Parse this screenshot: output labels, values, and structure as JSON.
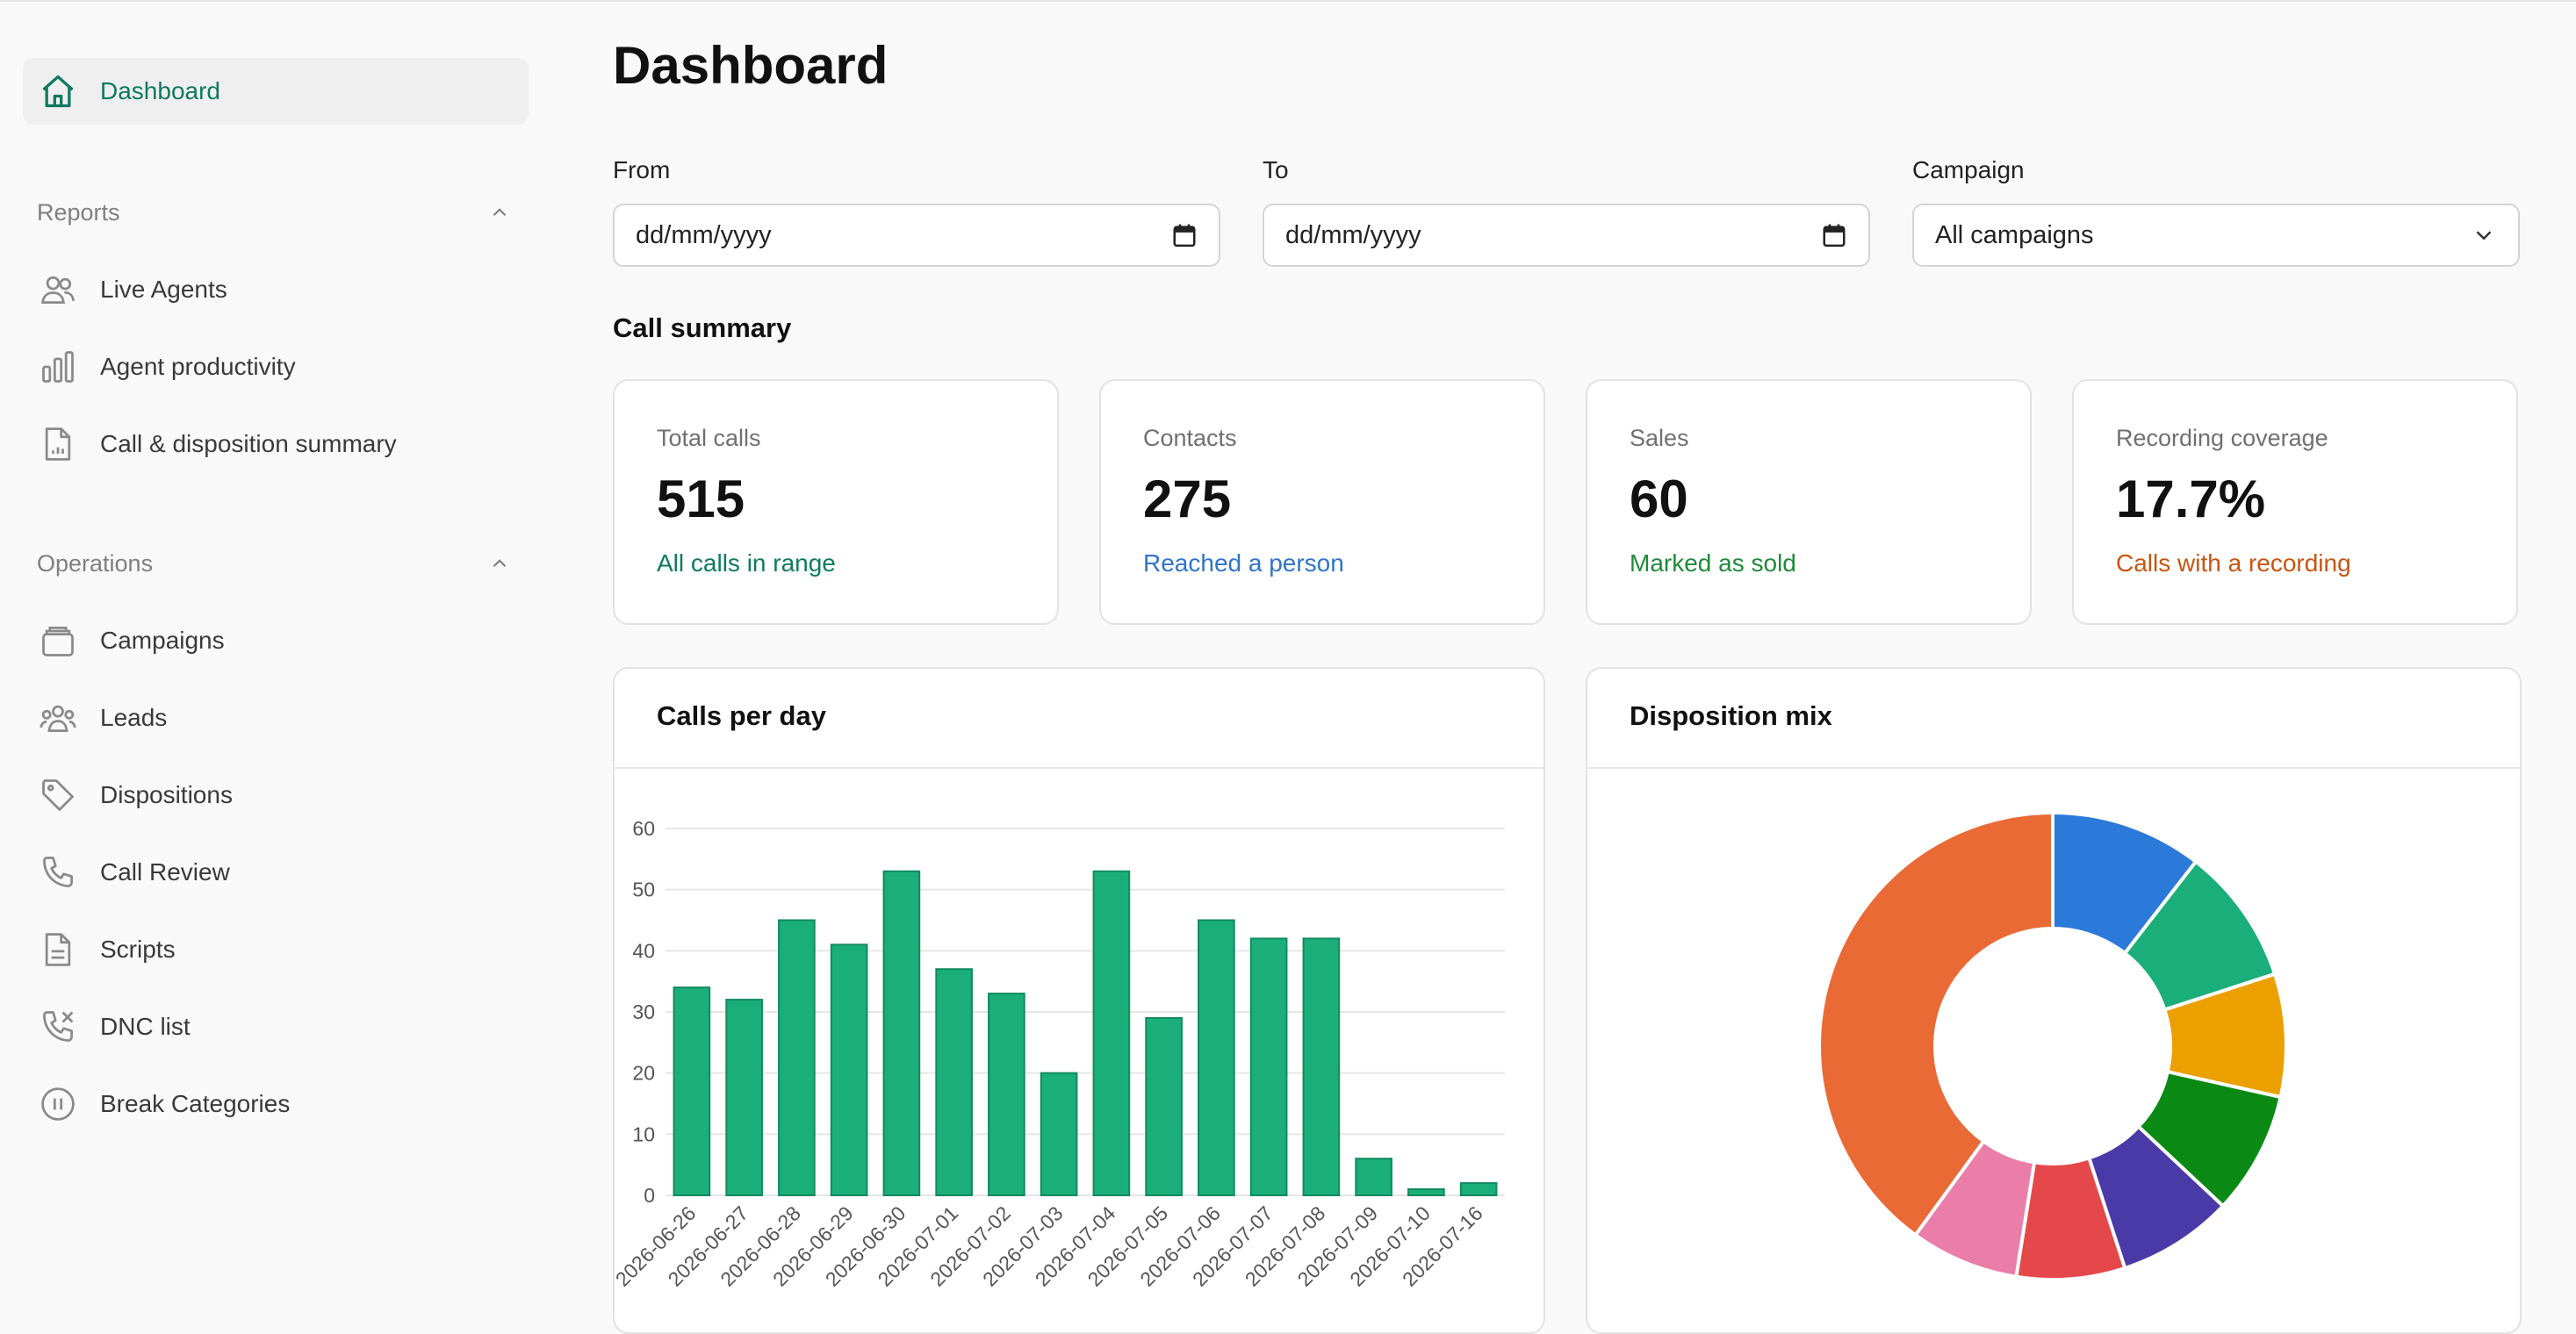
{
  "sidebar": {
    "dashboard": "Dashboard",
    "reports_title": "Reports",
    "reports": [
      "Live Agents",
      "Agent productivity",
      "Call & disposition summary"
    ],
    "operations_title": "Operations",
    "operations": [
      "Campaigns",
      "Leads",
      "Dispositions",
      "Call Review",
      "Scripts",
      "DNC list",
      "Break Categories"
    ]
  },
  "page": {
    "title": "Dashboard"
  },
  "filters": {
    "from_label": "From",
    "from_value": "dd/mm/yyyy",
    "to_label": "To",
    "to_value": "dd/mm/yyyy",
    "campaign_label": "Campaign",
    "campaign_value": "All campaigns"
  },
  "summary": {
    "title": "Call summary",
    "cards": [
      {
        "label": "Total calls",
        "value": "515",
        "sub": "All calls in range",
        "color": "#0e7a5f"
      },
      {
        "label": "Contacts",
        "value": "275",
        "sub": "Reached a person",
        "color": "#2f74c9"
      },
      {
        "label": "Sales",
        "value": "60",
        "sub": "Marked as sold",
        "color": "#1f8a3a"
      },
      {
        "label": "Recording coverage",
        "value": "17.7%",
        "sub": "Calls with a recording",
        "color": "#c9540f"
      }
    ]
  },
  "panels": {
    "calls_title": "Calls per day",
    "mix_title": "Disposition mix"
  },
  "chart_data": [
    {
      "type": "bar",
      "title": "Calls per day",
      "categories": [
        "2026-06-26",
        "2026-06-27",
        "2026-06-28",
        "2026-06-29",
        "2026-06-30",
        "2026-07-01",
        "2026-07-02",
        "2026-07-03",
        "2026-07-04",
        "2026-07-05",
        "2026-07-06",
        "2026-07-07",
        "2026-07-08",
        "2026-07-09",
        "2026-07-10",
        "2026-07-16"
      ],
      "values": [
        34,
        32,
        45,
        41,
        53,
        37,
        33,
        20,
        53,
        29,
        45,
        42,
        42,
        6,
        1,
        2
      ],
      "yticks": [
        0,
        10,
        20,
        30,
        40,
        50,
        60
      ],
      "ylim": [
        0,
        60
      ],
      "grid": true,
      "color": "#1aaf7a"
    },
    {
      "type": "pie",
      "title": "Disposition mix",
      "donut": true,
      "slices": [
        {
          "value": 10.5,
          "color": "#2b79d9"
        },
        {
          "value": 9.5,
          "color": "#1aaf7a"
        },
        {
          "value": 8.5,
          "color": "#eba000"
        },
        {
          "value": 8.5,
          "color": "#0a8a14"
        },
        {
          "value": 8.0,
          "color": "#4a3aa8"
        },
        {
          "value": 7.5,
          "color": "#e5484a"
        },
        {
          "value": 7.5,
          "color": "#ea7ea8"
        },
        {
          "value": 40.0,
          "color": "#ea6a35"
        }
      ]
    }
  ]
}
